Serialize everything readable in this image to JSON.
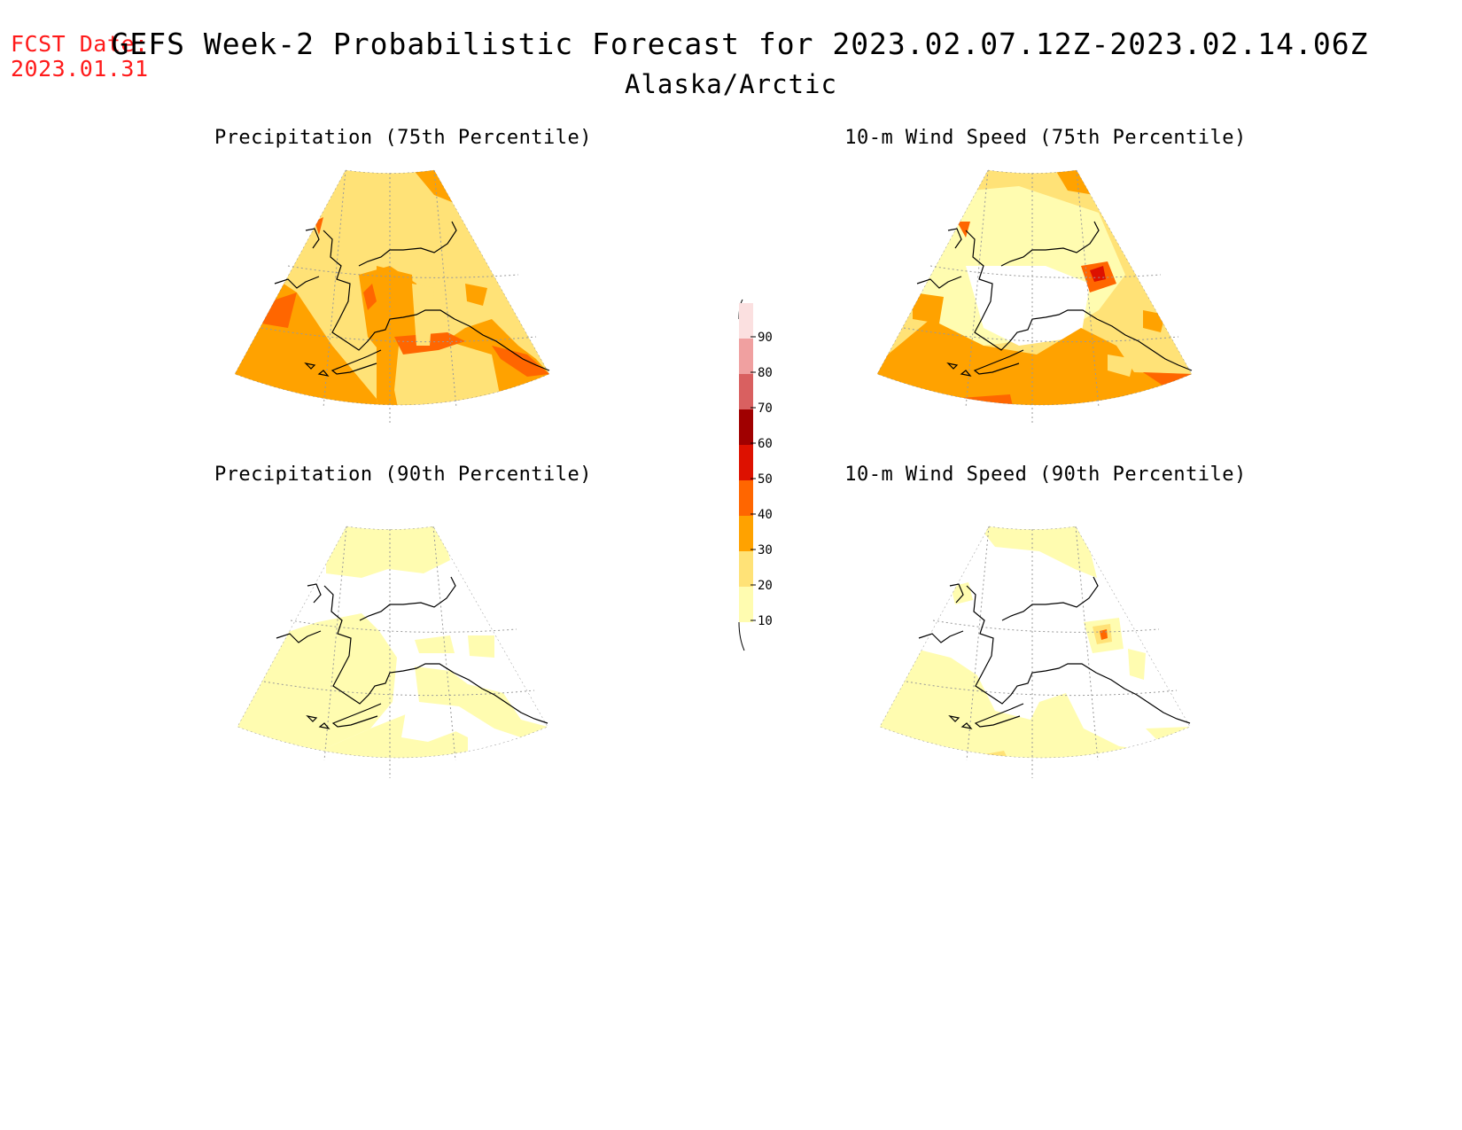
{
  "header": {
    "fcst_label": "FCST Date:",
    "fcst_date": "2023.01.31",
    "title": "GEFS Week-2 Probabilistic Forecast for 2023.02.07.12Z-2023.02.14.06Z",
    "region": "Alaska/Arctic"
  },
  "panels": [
    {
      "id": "precip75",
      "title": "Precipitation (75th Percentile)"
    },
    {
      "id": "wind75",
      "title": "10-m Wind Speed (75th Percentile)"
    },
    {
      "id": "precip90",
      "title": "Precipitation (90th Percentile)"
    },
    {
      "id": "wind90",
      "title": "10-m Wind Speed (90th Percentile)"
    }
  ],
  "colorbar": {
    "levels": [
      "10",
      "20",
      "30",
      "40",
      "50",
      "60",
      "70",
      "80",
      "90"
    ],
    "colors": [
      "#fffcb0",
      "#ffe277",
      "#ffa200",
      "#ff6600",
      "#dd1100",
      "#a00000",
      "#d96060",
      "#f0a0a0",
      "#fbe0e0"
    ]
  }
}
